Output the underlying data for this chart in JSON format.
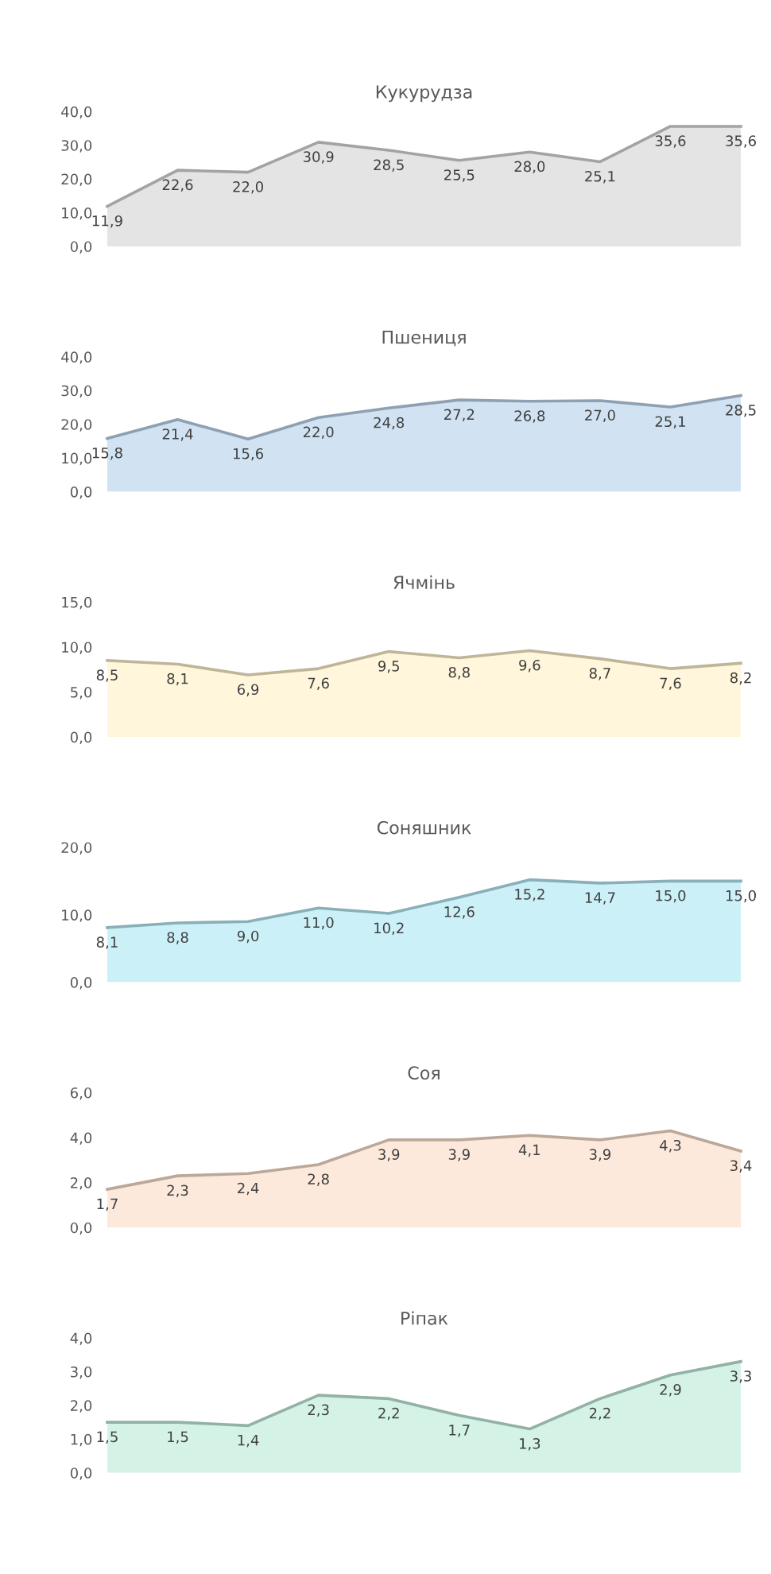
{
  "chart_data": [
    {
      "type": "area",
      "title": "Кукурудза",
      "categories": [
        null,
        null,
        null,
        null,
        null,
        null,
        null,
        null,
        null,
        null
      ],
      "ylim": [
        0,
        40
      ],
      "yticks": [
        {
          "value": 0,
          "label": "0,0"
        },
        {
          "value": 10,
          "label": "10,0"
        },
        {
          "value": 20,
          "label": "20,0"
        },
        {
          "value": 30,
          "label": "30,0"
        },
        {
          "value": 40,
          "label": "40,0"
        }
      ],
      "series": [
        {
          "color": "#d9d9d9",
          "values": [
            11.9,
            22.6,
            22.0,
            30.9,
            28.5,
            25.5,
            28.0,
            25.1,
            35.6,
            35.6
          ],
          "value_labels": [
            "11,9",
            "22,6",
            "22,0",
            "30,9",
            "28,5",
            "25,5",
            "28,0",
            "25,1",
            "35,6",
            "35,6"
          ]
        }
      ]
    },
    {
      "type": "area",
      "title": "Пшениця",
      "categories": [
        null,
        null,
        null,
        null,
        null,
        null,
        null,
        null,
        null,
        null
      ],
      "ylim": [
        0,
        40
      ],
      "yticks": [
        {
          "value": 0,
          "label": "0,0"
        },
        {
          "value": 10,
          "label": "10,0"
        },
        {
          "value": 20,
          "label": "20,0"
        },
        {
          "value": 30,
          "label": "30,0"
        },
        {
          "value": 40,
          "label": "40,0"
        }
      ],
      "series": [
        {
          "color": "#bdd7ee",
          "values": [
            15.8,
            21.4,
            15.6,
            22.0,
            24.8,
            27.2,
            26.8,
            27.0,
            25.1,
            28.5
          ],
          "value_labels": [
            "15,8",
            "21,4",
            "15,6",
            "22,0",
            "24,8",
            "27,2",
            "26,8",
            "27,0",
            "25,1",
            "28,5"
          ]
        }
      ]
    },
    {
      "type": "area",
      "title": "Ячмінь",
      "categories": [
        null,
        null,
        null,
        null,
        null,
        null,
        null,
        null,
        null,
        null
      ],
      "ylim": [
        0,
        15
      ],
      "yticks": [
        {
          "value": 0,
          "label": "0,0"
        },
        {
          "value": 5,
          "label": "5,0"
        },
        {
          "value": 10,
          "label": "10,0"
        },
        {
          "value": 15,
          "label": "15,0"
        }
      ],
      "series": [
        {
          "color": "#fff2cc",
          "values": [
            8.5,
            8.1,
            6.9,
            7.6,
            9.5,
            8.8,
            9.6,
            8.7,
            7.6,
            8.2
          ],
          "value_labels": [
            "8,5",
            "8,1",
            "6,9",
            "7,6",
            "9,5",
            "8,8",
            "9,6",
            "8,7",
            "7,6",
            "8,2"
          ]
        }
      ]
    },
    {
      "type": "area",
      "title": "Соняшник",
      "categories": [
        null,
        null,
        null,
        null,
        null,
        null,
        null,
        null,
        null,
        null
      ],
      "ylim": [
        0,
        20
      ],
      "yticks": [
        {
          "value": 0,
          "label": "0,0"
        },
        {
          "value": 10,
          "label": "10,0"
        },
        {
          "value": 20,
          "label": "20,0"
        }
      ],
      "series": [
        {
          "color": "#b7eaf5",
          "values": [
            8.1,
            8.8,
            9.0,
            11.0,
            10.2,
            12.6,
            15.2,
            14.7,
            15.0,
            15.0
          ],
          "value_labels": [
            "8,1",
            "8,8",
            "9,0",
            "11,0",
            "10,2",
            "12,6",
            "15,2",
            "14,7",
            "15,0",
            "15,0"
          ]
        }
      ]
    },
    {
      "type": "area",
      "title": "Соя",
      "categories": [
        null,
        null,
        null,
        null,
        null,
        null,
        null,
        null,
        null,
        null
      ],
      "ylim": [
        0,
        6
      ],
      "yticks": [
        {
          "value": 0,
          "label": "0,0"
        },
        {
          "value": 2,
          "label": "2,0"
        },
        {
          "value": 4,
          "label": "4,0"
        },
        {
          "value": 6,
          "label": "6,0"
        }
      ],
      "series": [
        {
          "color": "#fbe0cc",
          "values": [
            1.7,
            2.3,
            2.4,
            2.8,
            3.9,
            3.9,
            4.1,
            3.9,
            4.3,
            3.4
          ],
          "value_labels": [
            "1,7",
            "2,3",
            "2,4",
            "2,8",
            "3,9",
            "3,9",
            "4,1",
            "3,9",
            "4,3",
            "3,4"
          ]
        }
      ]
    },
    {
      "type": "area",
      "title": "Ріпак",
      "categories": [
        null,
        null,
        null,
        null,
        null,
        null,
        null,
        null,
        null,
        null
      ],
      "ylim": [
        0,
        4
      ],
      "yticks": [
        {
          "value": 0,
          "label": "0,0"
        },
        {
          "value": 1,
          "label": "1,0"
        },
        {
          "value": 2,
          "label": "2,0"
        },
        {
          "value": 3,
          "label": "3,0"
        },
        {
          "value": 4,
          "label": "4,0"
        }
      ],
      "series": [
        {
          "color": "#c2eedc",
          "values": [
            1.5,
            1.5,
            1.4,
            2.3,
            2.2,
            1.7,
            1.3,
            2.2,
            2.9,
            3.3
          ],
          "value_labels": [
            "1,5",
            "1,5",
            "1,4",
            "2,3",
            "2,2",
            "1,7",
            "1,3",
            "2,2",
            "2,9",
            "3,3"
          ]
        }
      ]
    }
  ]
}
